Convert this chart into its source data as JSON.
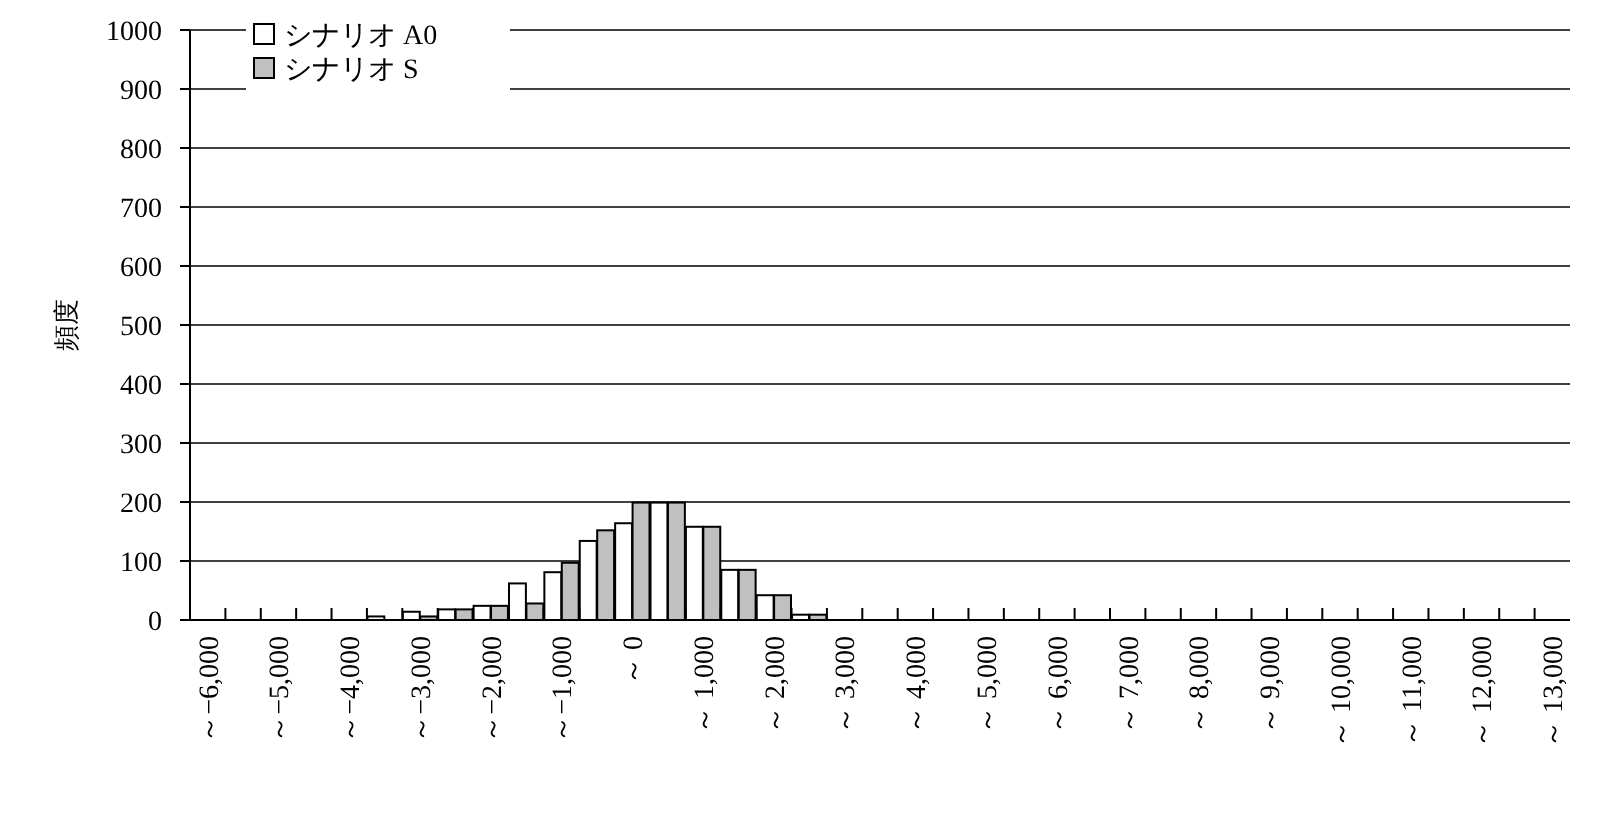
{
  "chart_data": {
    "type": "bar",
    "ylabel": "頻度",
    "categories": [
      "～−6,000",
      null,
      "～−5,000",
      null,
      "～−4,000",
      null,
      "～−3,000",
      null,
      "～−2,000",
      null,
      "～−1,000",
      null,
      "～ 0",
      null,
      "～ 1,000",
      null,
      "～ 2,000",
      null,
      "～ 3,000",
      null,
      "～ 4,000",
      null,
      "～ 5,000",
      null,
      "～ 6,000",
      null,
      "～ 7,000",
      null,
      "～ 8,000",
      null,
      "～ 9,000",
      null,
      "～ 10,000",
      null,
      "～ 11,000",
      null,
      "～ 12,000",
      null,
      "～ 13,000"
    ],
    "series": [
      {
        "name": "シナリオ A0",
        "color": "#ffffff",
        "values": [
          0,
          0,
          0,
          0,
          0,
          6,
          14,
          18,
          24,
          62,
          81,
          134,
          164,
          199,
          158,
          85,
          42,
          9,
          0,
          0,
          0,
          0,
          0,
          0,
          0,
          0,
          0,
          0,
          0,
          0,
          0,
          0,
          0,
          0,
          0,
          0,
          0,
          0,
          0
        ]
      },
      {
        "name": "シナリオ S",
        "color": "#c0c0c0",
        "values": [
          0,
          0,
          0,
          0,
          0,
          0,
          6,
          18,
          24,
          28,
          97,
          152,
          199,
          199,
          158,
          85,
          42,
          9,
          0,
          0,
          0,
          0,
          0,
          0,
          0,
          0,
          0,
          0,
          0,
          0,
          0,
          0,
          0,
          0,
          0,
          0,
          0,
          0,
          0
        ]
      }
    ],
    "ylim": [
      0,
      1000
    ],
    "yticks": [
      0,
      100,
      200,
      300,
      400,
      500,
      600,
      700,
      800,
      900,
      1000
    ],
    "grid": "y",
    "legend": "top left"
  }
}
